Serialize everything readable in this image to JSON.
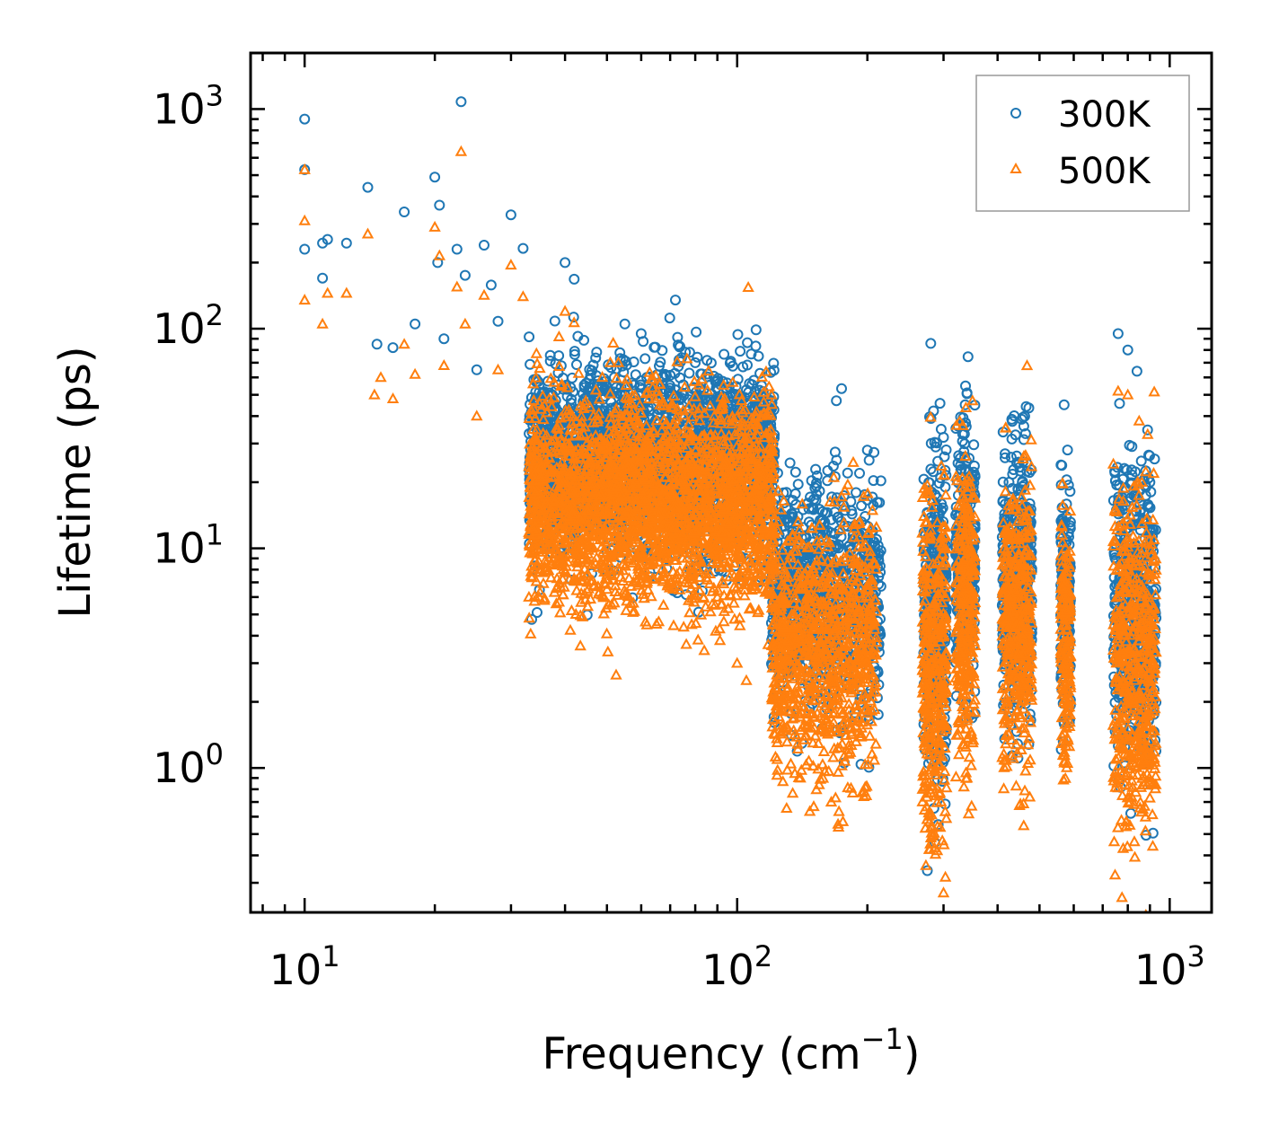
{
  "chart_data": {
    "type": "scatter",
    "xscale": "log",
    "yscale": "log",
    "xlim": [
      7.5,
      1250
    ],
    "ylim": [
      0.22,
      1800
    ],
    "xlabel": "Frequency (cm",
    "xlabel_sup": "−1",
    "xlabel_end": ")",
    "ylabel": "Lifetime (ps)",
    "x_ticks": [
      {
        "value": 10,
        "base": "10",
        "exp": "1"
      },
      {
        "value": 100,
        "base": "10",
        "exp": "2"
      },
      {
        "value": 1000,
        "base": "10",
        "exp": "3"
      }
    ],
    "y_ticks": [
      {
        "value": 1,
        "base": "10",
        "exp": "0"
      },
      {
        "value": 10,
        "base": "10",
        "exp": "1"
      },
      {
        "value": 100,
        "base": "10",
        "exp": "2"
      },
      {
        "value": 1000,
        "base": "10",
        "exp": "3"
      }
    ],
    "legend_position": "top-right",
    "series": [
      {
        "name": "300K",
        "color": "#1f77b4",
        "marker": "circle",
        "points": [
          [
            10,
            900
          ],
          [
            10,
            530
          ],
          [
            10,
            230
          ],
          [
            11,
            170
          ],
          [
            11,
            245
          ],
          [
            11.3,
            255
          ],
          [
            12.5,
            245
          ],
          [
            14,
            440
          ],
          [
            14.7,
            85
          ],
          [
            16,
            82
          ],
          [
            17,
            340
          ],
          [
            18,
            105
          ],
          [
            20,
            490
          ],
          [
            20.5,
            365
          ],
          [
            20.3,
            200
          ],
          [
            21,
            90
          ],
          [
            22.5,
            230
          ],
          [
            23,
            1080
          ],
          [
            23.5,
            175
          ],
          [
            25,
            65
          ],
          [
            26,
            240
          ],
          [
            27,
            158
          ],
          [
            28,
            108
          ],
          [
            30,
            330
          ],
          [
            32,
            232
          ],
          [
            40,
            200
          ],
          [
            42,
            168
          ],
          [
            52,
            60
          ],
          [
            55,
            105
          ],
          [
            60,
            95
          ],
          [
            72,
            135
          ],
          [
            80,
            70
          ],
          [
            90,
            58
          ],
          [
            112,
            75
          ],
          [
            120,
            47
          ],
          [
            130,
            18
          ],
          [
            150,
            15
          ],
          [
            170,
            17
          ],
          [
            180,
            22
          ],
          [
            200,
            28
          ],
          [
            210,
            11
          ],
          [
            205,
            9
          ],
          [
            290,
            17
          ],
          [
            300,
            32
          ],
          [
            340,
            51
          ],
          [
            430,
            26
          ],
          [
            460,
            36
          ],
          [
            570,
            45
          ],
          [
            760,
            95
          ],
          [
            800,
            80
          ],
          [
            840,
            64
          ],
          [
            900,
            20
          ]
        ],
        "clusters": [
          {
            "x_range": [
              33,
              122
            ],
            "y_center": 25,
            "y_spread": 1.7,
            "count": 2600
          },
          {
            "x_range": [
              120,
              215
            ],
            "y_center": 6,
            "y_spread": 1.9,
            "count": 900
          },
          {
            "x_range": [
              270,
              305
            ],
            "y_center": 5,
            "y_spread": 2.6,
            "count": 380
          },
          {
            "x_range": [
              320,
              355
            ],
            "y_center": 9,
            "y_spread": 2.2,
            "count": 320
          },
          {
            "x_range": [
              410,
              480
            ],
            "y_center": 7,
            "y_spread": 2.1,
            "count": 420
          },
          {
            "x_range": [
              560,
              590
            ],
            "y_center": 6,
            "y_spread": 2.0,
            "count": 180
          },
          {
            "x_range": [
              740,
              930
            ],
            "y_center": 5,
            "y_spread": 2.4,
            "count": 520
          }
        ]
      },
      {
        "name": "500K",
        "color": "#ff7f0e",
        "marker": "triangle",
        "points": [
          [
            10,
            530
          ],
          [
            10,
            310
          ],
          [
            10,
            135
          ],
          [
            11,
            105
          ],
          [
            11.3,
            145
          ],
          [
            12.5,
            145
          ],
          [
            14,
            270
          ],
          [
            14.5,
            50
          ],
          [
            15,
            60
          ],
          [
            16,
            48
          ],
          [
            17,
            85
          ],
          [
            18,
            62
          ],
          [
            20,
            290
          ],
          [
            20.5,
            215
          ],
          [
            21,
            68
          ],
          [
            22.5,
            155
          ],
          [
            23,
            640
          ],
          [
            23.5,
            105
          ],
          [
            25,
            40
          ],
          [
            26,
            142
          ],
          [
            28,
            65
          ],
          [
            30,
            195
          ],
          [
            32,
            140
          ],
          [
            33,
            6
          ],
          [
            35,
            6.3
          ],
          [
            40,
            120
          ],
          [
            45,
            7
          ],
          [
            50,
            6.5
          ],
          [
            55,
            6.2
          ],
          [
            90,
            6
          ],
          [
            100,
            3
          ],
          [
            105,
            2.5
          ],
          [
            120,
            50
          ],
          [
            140,
            0.9
          ],
          [
            165,
            0.7
          ],
          [
            300,
            0.27
          ],
          [
            340,
            0.9
          ],
          [
            470,
            1.05
          ],
          [
            580,
            1.8
          ],
          [
            860,
            0.63
          ],
          [
            200,
            6.8
          ],
          [
            760,
            52
          ],
          [
            800,
            50
          ],
          [
            850,
            38
          ]
        ],
        "clusters": [
          {
            "x_range": [
              33,
              122
            ],
            "y_center": 16,
            "y_spread": 1.8,
            "count": 2600
          },
          {
            "x_range": [
              120,
              210
            ],
            "y_center": 3.5,
            "y_spread": 2.1,
            "count": 900
          },
          {
            "x_range": [
              268,
              305
            ],
            "y_center": 2.8,
            "y_spread": 2.8,
            "count": 380
          },
          {
            "x_range": [
              320,
              355
            ],
            "y_center": 5,
            "y_spread": 2.4,
            "count": 320
          },
          {
            "x_range": [
              410,
              480
            ],
            "y_center": 4.5,
            "y_spread": 2.2,
            "count": 420
          },
          {
            "x_range": [
              560,
              590
            ],
            "y_center": 4,
            "y_spread": 2.1,
            "count": 180
          },
          {
            "x_range": [
              740,
              930
            ],
            "y_center": 3,
            "y_spread": 2.6,
            "count": 520
          }
        ]
      }
    ]
  }
}
